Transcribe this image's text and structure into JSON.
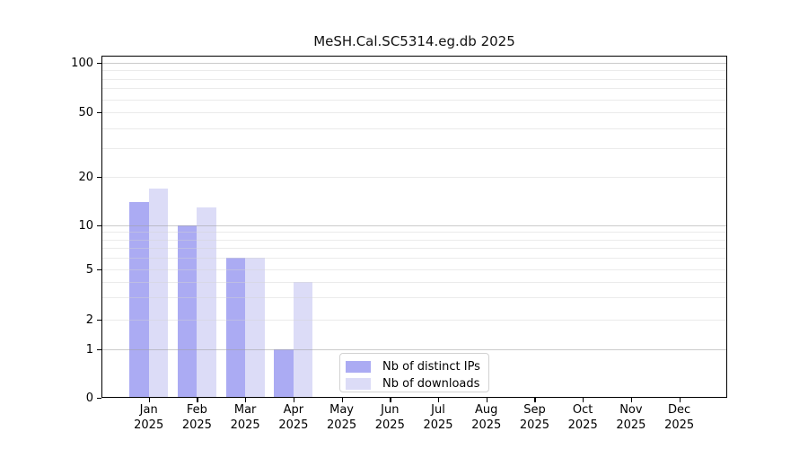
{
  "chart_data": {
    "type": "bar",
    "title": "MeSH.Cal.SC5314.eg.db 2025",
    "categories": [
      "Jan 2025",
      "Feb 2025",
      "Mar 2025",
      "Apr 2025",
      "May 2025",
      "Jun 2025",
      "Jul 2025",
      "Aug 2025",
      "Sep 2025",
      "Oct 2025",
      "Nov 2025",
      "Dec 2025"
    ],
    "series": [
      {
        "name": "Nb of distinct IPs",
        "color": "#ababf3",
        "values": [
          14,
          10,
          6,
          1,
          0,
          0,
          0,
          0,
          0,
          0,
          0,
          0
        ]
      },
      {
        "name": "Nb of downloads",
        "color": "#dcdcf7",
        "values": [
          17,
          13,
          6,
          4,
          0,
          0,
          0,
          0,
          0,
          0,
          0,
          0
        ]
      }
    ],
    "xlabel": "",
    "ylabel": "",
    "yscale": "symlog",
    "ylim": [
      0,
      100
    ],
    "yticks": [
      0,
      1,
      2,
      5,
      10,
      20,
      50,
      100
    ],
    "y_minor_gridlines": [
      3,
      4,
      6,
      7,
      8,
      9,
      30,
      40,
      60,
      70,
      80,
      90
    ],
    "grid": true,
    "legend_position": "inside-bottom-center"
  },
  "colors": {
    "background": "#ffffff",
    "axis": "#000000",
    "grid_major": "#c6c6c6",
    "grid_minor": "#e6e6e6",
    "legend_border": "#d2d2d2"
  }
}
